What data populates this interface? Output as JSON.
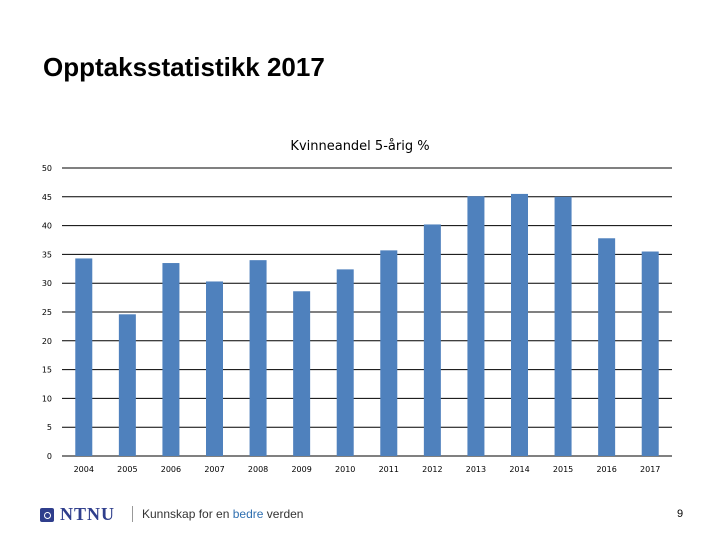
{
  "slide": {
    "title": "Opptaksstatistikk 2017",
    "page_number": "9"
  },
  "footer": {
    "logo_text": "NTNU",
    "tagline_pre": "Kunnskap for en ",
    "tagline_accent": "bedre",
    "tagline_post": " verden"
  },
  "colors": {
    "bar": "#4f81bd",
    "grid": "#000000",
    "accent": "#2f6fb0"
  },
  "chart_data": {
    "type": "bar",
    "title": "Kvinneandel 5-årig %",
    "categories": [
      "2004",
      "2005",
      "2006",
      "2007",
      "2008",
      "2009",
      "2010",
      "2011",
      "2012",
      "2013",
      "2014",
      "2015",
      "2016",
      "2017"
    ],
    "values": [
      34.3,
      24.6,
      33.5,
      30.3,
      34.0,
      28.6,
      32.4,
      35.7,
      40.2,
      45.1,
      45.5,
      45.0,
      37.8,
      35.5
    ],
    "ylim": [
      0,
      50
    ],
    "yticks": [
      0,
      5,
      10,
      15,
      20,
      25,
      30,
      35,
      40,
      45,
      50
    ],
    "grid": true,
    "legend": "none"
  }
}
